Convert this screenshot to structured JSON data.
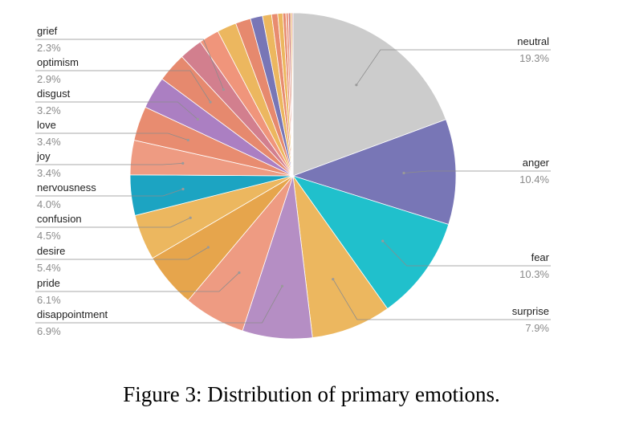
{
  "caption": "Figure 3: Distribution of primary emotions.",
  "chart_data": {
    "type": "pie",
    "title": "",
    "slices": [
      {
        "label": "neutral",
        "value": 19.3,
        "display": "19.3%",
        "color": "#cccccc",
        "labeled": true
      },
      {
        "label": "anger",
        "value": 10.4,
        "display": "10.4%",
        "color": "#7876b6",
        "labeled": true
      },
      {
        "label": "fear",
        "value": 10.3,
        "display": "10.3%",
        "color": "#20c0cc",
        "labeled": true
      },
      {
        "label": "surprise",
        "value": 7.9,
        "display": "7.9%",
        "color": "#ecb75f",
        "labeled": true
      },
      {
        "label": "disappointment",
        "value": 6.9,
        "display": "6.9%",
        "color": "#b58ec4",
        "labeled": true
      },
      {
        "label": "pride",
        "value": 6.1,
        "display": "6.1%",
        "color": "#ee9b82",
        "labeled": true
      },
      {
        "label": "desire",
        "value": 5.4,
        "display": "5.4%",
        "color": "#e6a54c",
        "labeled": true
      },
      {
        "label": "confusion",
        "value": 4.5,
        "display": "4.5%",
        "color": "#ecb75f",
        "labeled": true
      },
      {
        "label": "nervousness",
        "value": 4.0,
        "display": "4.0%",
        "color": "#1ca4c2",
        "labeled": true
      },
      {
        "label": "joy",
        "value": 3.4,
        "display": "3.4%",
        "color": "#ee9b82",
        "labeled": true
      },
      {
        "label": "love",
        "value": 3.4,
        "display": "3.4%",
        "color": "#e88c70",
        "labeled": true
      },
      {
        "label": "disgust",
        "value": 3.2,
        "display": "3.2%",
        "color": "#ab7fc2",
        "labeled": true
      },
      {
        "label": "optimism",
        "value": 2.9,
        "display": "2.9%",
        "color": "#e6896e",
        "labeled": true
      },
      {
        "label": "grief",
        "value": 2.3,
        "display": "2.3%",
        "color": "#d27f8e",
        "labeled": true
      },
      {
        "label": "",
        "value": 2.0,
        "display": "",
        "color": "#f0957b",
        "labeled": false
      },
      {
        "label": "",
        "value": 1.9,
        "display": "",
        "color": "#ecb75f",
        "labeled": false
      },
      {
        "label": "",
        "value": 1.5,
        "display": "",
        "color": "#e6896e",
        "labeled": false
      },
      {
        "label": "",
        "value": 1.2,
        "display": "",
        "color": "#7876b6",
        "labeled": false
      },
      {
        "label": "",
        "value": 0.9,
        "display": "",
        "color": "#ecb75f",
        "labeled": false
      },
      {
        "label": "",
        "value": 0.6,
        "display": "",
        "color": "#e88c70",
        "labeled": false
      },
      {
        "label": "",
        "value": 0.5,
        "display": "",
        "color": "#ecb75f",
        "labeled": false
      },
      {
        "label": "",
        "value": 0.3,
        "display": "",
        "color": "#e6896e",
        "labeled": false
      },
      {
        "label": "",
        "value": 0.25,
        "display": "",
        "color": "#ee9b82",
        "labeled": false
      },
      {
        "label": "",
        "value": 0.2,
        "display": "",
        "color": "#cc7a7a",
        "labeled": false
      },
      {
        "label": "",
        "value": 0.15,
        "display": "",
        "color": "#e6a54c",
        "labeled": false
      },
      {
        "label": "",
        "value": 0.1,
        "display": "",
        "color": "#d27f8e",
        "labeled": false
      }
    ],
    "legend": "none"
  }
}
